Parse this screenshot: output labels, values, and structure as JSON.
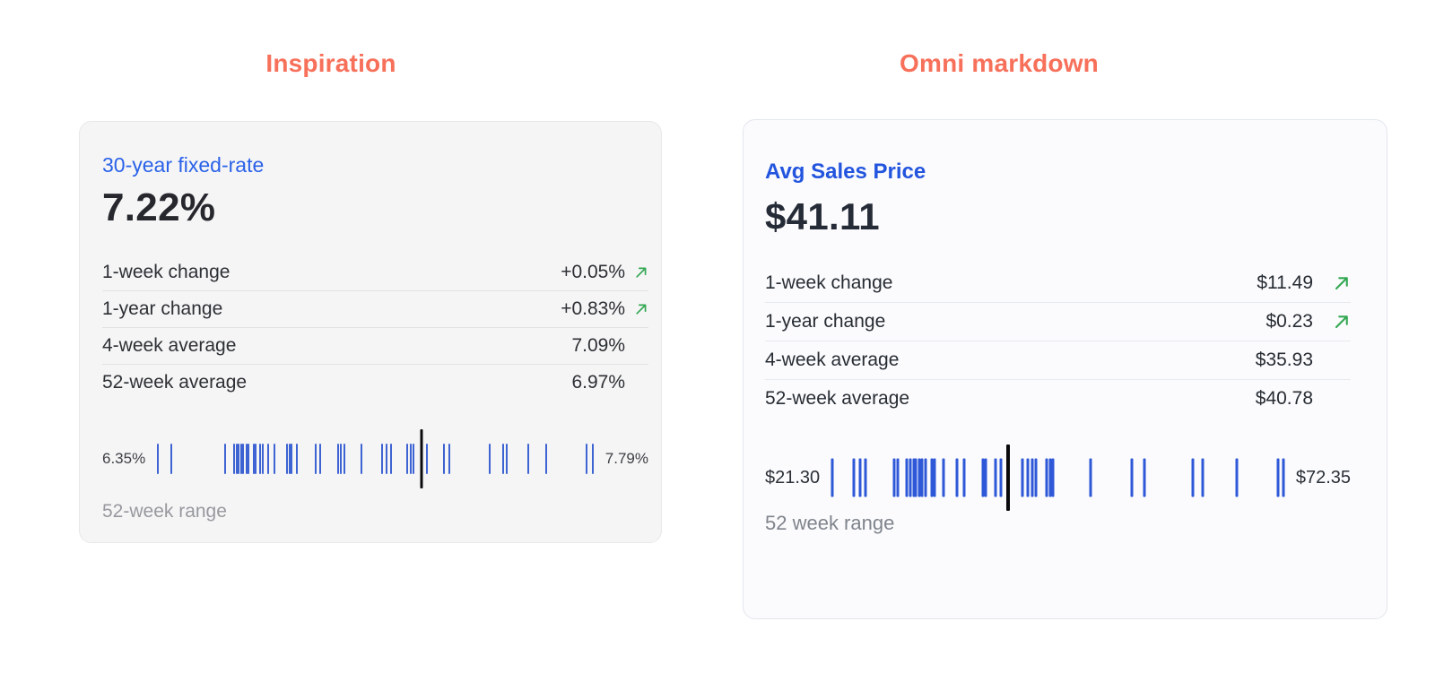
{
  "columns": [
    {
      "heading": "Inspiration",
      "heading_color": "#f7705a",
      "card": {
        "title": "30-year fixed-rate",
        "value": "7.22%",
        "rows": [
          {
            "label": "1-week change",
            "value": "+0.05%",
            "trend": "up"
          },
          {
            "label": "1-year change",
            "value": "+0.83%",
            "trend": "up"
          },
          {
            "label": "4-week average",
            "value": "7.09%",
            "trend": null
          },
          {
            "label": "52-week average",
            "value": "6.97%",
            "trend": null
          }
        ],
        "colors": {
          "bg": "#f5f5f6",
          "border": "#e8e8ea",
          "accent": "#2b62e8",
          "value": "#26282d",
          "text": "#2d3034",
          "divider": "#e2e2e4",
          "positive": "#34a853",
          "tick": "#3e63d2",
          "marker": "#0a0a0c",
          "range-label": "#3c3f44",
          "caption": "#97999e"
        }
      }
    },
    {
      "heading": "Omni markdown",
      "heading_color": "#f7705a",
      "card": {
        "title": "Avg Sales Price",
        "value": "$41.11",
        "rows": [
          {
            "label": "1-week change",
            "value": "$11.49",
            "trend": "up"
          },
          {
            "label": "1-year change",
            "value": "$0.23",
            "trend": "up"
          },
          {
            "label": "4-week average",
            "value": "$35.93",
            "trend": null
          },
          {
            "label": "52-week average",
            "value": "$40.78",
            "trend": null
          }
        ],
        "colors": {
          "bg": "#fbfbfd",
          "border": "#e2e6ee",
          "accent": "#2254de",
          "value": "#262c37",
          "text": "#272c33",
          "divider": "#e6e9ee",
          "positive": "#34a853",
          "tick": "#2e58d8",
          "marker": "#0a0a0c",
          "range-label": "#2b3037",
          "caption": "#7f848c"
        }
      }
    }
  ],
  "chart_data": [
    {
      "type": "strip",
      "caption": "52-week range",
      "min_label": "6.35%",
      "max_label": "7.79%",
      "current_label": "7.22%",
      "current_pct": 60.6,
      "ticks_pct": [
        0,
        3.1,
        15.5,
        17.4,
        18.1,
        18.5,
        19.2,
        19.6,
        20.3,
        20.9,
        22.0,
        22.4,
        23.5,
        24.2,
        25.3,
        26.8,
        29.6,
        30.3,
        30.7,
        32.0,
        36.2,
        37.3,
        41.4,
        42.0,
        42.9,
        46.8,
        51.6,
        52.5,
        53.6,
        57.3,
        58.2,
        58.8,
        61.9,
        65.8,
        67.1,
        76.3,
        79.5,
        80.2,
        85.2,
        89.3,
        98.5,
        100
      ]
    },
    {
      "type": "strip",
      "caption": "52 week range",
      "min_label": "$21.30",
      "max_label": "$72.35",
      "current_label": "$41.11",
      "current_pct": 38.9,
      "ticks_pct": [
        0,
        4.7,
        6.1,
        7.4,
        13.6,
        14.4,
        16.5,
        17.2,
        18.0,
        18.4,
        19.2,
        19.9,
        20.7,
        22.0,
        22.6,
        24.7,
        27.6,
        29.3,
        33.3,
        33.9,
        36.2,
        37.4,
        42.1,
        43.3,
        44.4,
        45.2,
        47.5,
        48.3,
        49.0,
        57.3,
        66.5,
        69.2,
        79.9,
        82.2,
        89.7,
        98.9,
        100
      ]
    }
  ]
}
